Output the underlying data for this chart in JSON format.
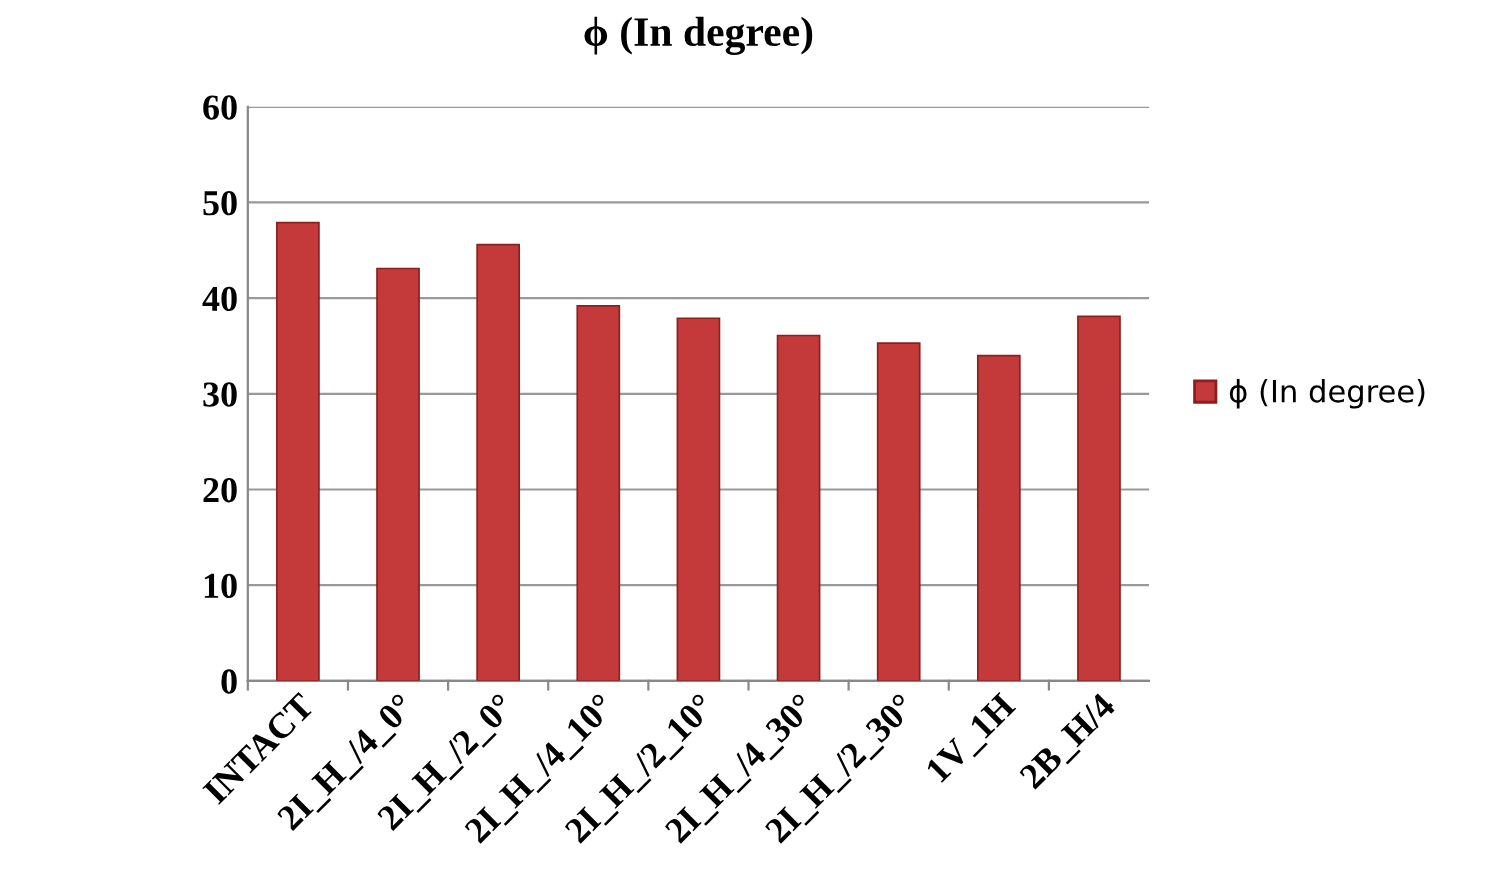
{
  "chart_data": {
    "type": "bar",
    "title": "ϕ (In degree)",
    "categories": [
      "INTACT",
      "2I_H_/4_0°",
      "2I_H_/2_0°",
      "2I_H_/4_10°",
      "2I_H_/2_10°",
      "2I_H_/4_30°",
      "2I_H_/2_30°",
      "1V_1H",
      "2B_H/4"
    ],
    "series": [
      {
        "name": "ϕ (In degree)",
        "color": "#c43a3a",
        "values": [
          47.9,
          43.1,
          45.6,
          39.2,
          37.9,
          36.1,
          35.3,
          34.0,
          38.1
        ]
      }
    ],
    "ylim": [
      0,
      60
    ],
    "yticks": [
      0,
      10,
      20,
      30,
      40,
      50,
      60
    ],
    "grid": "y",
    "legend": "right"
  }
}
